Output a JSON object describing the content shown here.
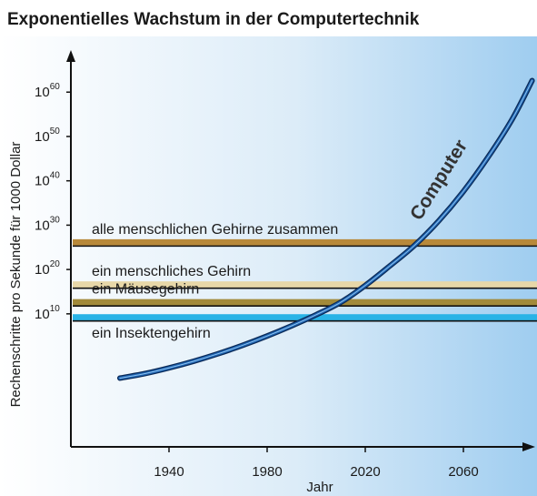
{
  "chart_data": {
    "type": "line",
    "title": "Exponentielles Wachstum in der Computertechnik",
    "xlabel": "Jahr",
    "ylabel": "Rechenschritte pro Sekunde für 1000 Dollar",
    "xlim": [
      1900,
      2090
    ],
    "ylim": [
      -20,
      66
    ],
    "y_scale": "log10",
    "x_ticks": [
      1940,
      1980,
      2020,
      2060
    ],
    "y_ticks": [
      {
        "base": "10",
        "exp": "10",
        "value": 10
      },
      {
        "base": "10",
        "exp": "20",
        "value": 20
      },
      {
        "base": "10",
        "exp": "30",
        "value": 30
      },
      {
        "base": "10",
        "exp": "40",
        "value": 40
      },
      {
        "base": "10",
        "exp": "50",
        "value": 50
      },
      {
        "base": "10",
        "exp": "60",
        "value": 60
      }
    ],
    "series": [
      {
        "name": "Computer",
        "color": "#1e63b0",
        "x": [
          1920,
          1930,
          1940,
          1950,
          1960,
          1970,
          1980,
          1990,
          2000,
          2010,
          2020,
          2030,
          2040,
          2050,
          2060,
          2070,
          2080,
          2088
        ],
        "y": [
          -4.5,
          -3.5,
          -2.2,
          -0.7,
          1.0,
          2.9,
          5.0,
          7.3,
          9.8,
          12.6,
          16.4,
          20.8,
          25.4,
          31.0,
          37.6,
          45.3,
          54.0,
          62.6
        ]
      }
    ],
    "reference_lines": [
      {
        "label": "alle menschlichen Gehirne zusammen",
        "value": 26,
        "color": "#b8893a"
      },
      {
        "label": "ein menschliches Gehirn",
        "value": 16.5,
        "color": "#e7d7a8"
      },
      {
        "label": "ein Mäusegehirn",
        "value": 12.5,
        "color": "#a28a3a"
      },
      {
        "label": "ein Insektengehirn",
        "value": 9.1,
        "color": "#29b3e6"
      }
    ],
    "grid": false,
    "legend": "none"
  }
}
